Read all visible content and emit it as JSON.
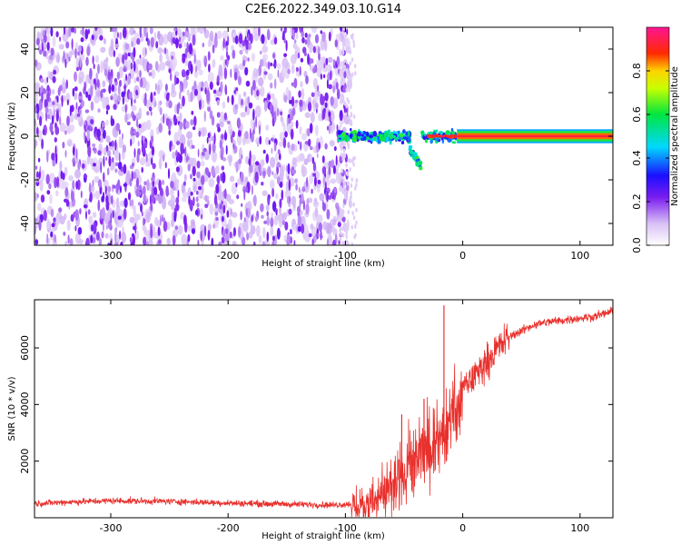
{
  "figure": {
    "title": "C2E6.2022.349.03.10.G14"
  },
  "chart_data": [
    {
      "type": "heatmap",
      "title": "C2E6.2022.349.03.10.G14",
      "xlabel": "Height of straight line (km)",
      "ylabel": "Frequency (Hz)",
      "xlim": [
        -365,
        128
      ],
      "ylim": [
        -50,
        50
      ],
      "x_ticks": [
        -300,
        -200,
        -100,
        0,
        100
      ],
      "y_ticks": [
        -40,
        -20,
        0,
        20,
        40
      ],
      "colorbar": {
        "label": "Normalized spectral amplitude",
        "range": [
          0.0,
          1.0
        ],
        "ticks": [
          0.0,
          0.2,
          0.4,
          0.6,
          0.8
        ],
        "colormap": "white-purple-blue-cyan-green-yellow-red-magenta"
      },
      "regions": [
        {
          "description": "noise",
          "x_range": [
            -365,
            -90
          ],
          "freq_range": [
            -50,
            50
          ],
          "amplitude_range": [
            0.0,
            0.12
          ]
        },
        {
          "description": "transition",
          "x_range": [
            -105,
            -5
          ],
          "freq_range": [
            -16,
            5
          ],
          "amplitude_range": [
            0.2,
            0.5
          ]
        },
        {
          "description": "direct signal",
          "x_range": [
            -30,
            128
          ],
          "freq_range": [
            -1,
            1
          ],
          "amplitude_range": [
            0.8,
            0.95
          ]
        }
      ]
    },
    {
      "type": "line",
      "xlabel": "Height of straight line (km)",
      "ylabel": "SNR (10 * v/v)",
      "xlim": [
        -365,
        128
      ],
      "ylim": [
        0,
        7700
      ],
      "x_ticks": [
        -300,
        -200,
        -100,
        0,
        100
      ],
      "y_ticks": [
        2000,
        4000,
        6000
      ],
      "color": "#e8302c",
      "series": [
        {
          "x": [
            -365,
            -340,
            -300,
            -250,
            -200,
            -150,
            -110,
            -90,
            -80,
            -70,
            -60,
            -50,
            -40,
            -30,
            -25,
            -20,
            -17,
            -10,
            0,
            10,
            20,
            30,
            40,
            50,
            60,
            70,
            80,
            90,
            100,
            110,
            120,
            128
          ],
          "values": [
            500,
            550,
            600,
            580,
            520,
            480,
            450,
            500,
            700,
            900,
            1400,
            1900,
            2400,
            2800,
            3000,
            3300,
            3500,
            4200,
            4600,
            5000,
            5500,
            6000,
            6400,
            6600,
            6800,
            6900,
            6950,
            7000,
            7050,
            7100,
            7200,
            7300
          ]
        }
      ],
      "spikes": [
        {
          "x": -52,
          "value": 3650
        },
        {
          "x": -33,
          "value": 4200
        },
        {
          "x": -16,
          "value": 7500
        }
      ]
    }
  ]
}
